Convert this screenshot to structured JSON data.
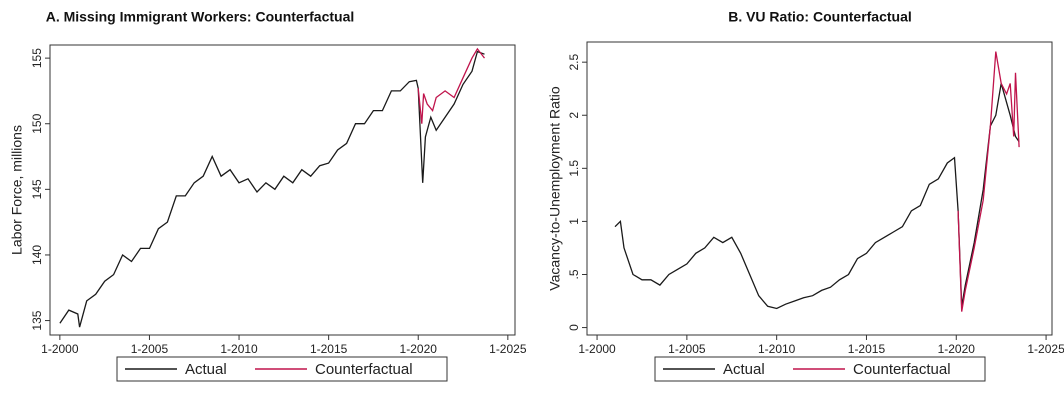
{
  "chart_data": [
    {
      "type": "line",
      "title": "A. Missing Immigrant Workers: Counterfactual",
      "y_label": "Labor Force, millions",
      "xlim": [
        1999.45,
        2025.4
      ],
      "ylim": [
        133.9,
        156
      ],
      "xticks": [
        {
          "value": 2000,
          "label": "1-2000"
        },
        {
          "value": 2005,
          "label": "1-2005"
        },
        {
          "value": 2010,
          "label": "1-2010"
        },
        {
          "value": 2015,
          "label": "1-2015"
        },
        {
          "value": 2020,
          "label": "1-2020"
        },
        {
          "value": 2025,
          "label": "1-2025"
        }
      ],
      "yticks": [
        135,
        140,
        145,
        150,
        155
      ],
      "series": [
        {
          "name": "Actual",
          "color": "#1a1a1a",
          "x": [
            2000,
            2000.5,
            2001,
            2001.1,
            2001.5,
            2002,
            2002.5,
            2003,
            2003.5,
            2004,
            2004.5,
            2005,
            2005.5,
            2006,
            2006.5,
            2007,
            2007.5,
            2008,
            2008.5,
            2009,
            2009.5,
            2010,
            2010.5,
            2011,
            2011.5,
            2012,
            2012.5,
            2013,
            2013.5,
            2014,
            2014.5,
            2015,
            2015.5,
            2016,
            2016.5,
            2017,
            2017.5,
            2018,
            2018.5,
            2019,
            2019.5,
            2019.9,
            2020,
            2020.25,
            2020.4,
            2020.7,
            2021,
            2021.5,
            2022,
            2022.5,
            2023,
            2023.3,
            2023.7
          ],
          "values": [
            134.8,
            135.8,
            135.5,
            134.5,
            136.5,
            137,
            138,
            138.5,
            140,
            139.5,
            140.5,
            140.5,
            142,
            142.5,
            144.5,
            144.5,
            145.5,
            146,
            147.5,
            146,
            146.5,
            145.5,
            145.8,
            144.8,
            145.5,
            145,
            146,
            145.5,
            146.5,
            146,
            146.8,
            147,
            148,
            148.5,
            150,
            150,
            151,
            151,
            152.5,
            152.5,
            153.2,
            153.3,
            152.7,
            145.5,
            149,
            150.5,
            149.5,
            150.5,
            151.5,
            153,
            154,
            155.5,
            155.3
          ]
        },
        {
          "name": "Counterfactual",
          "color": "#c0144c",
          "x": [
            2020,
            2020.2,
            2020.3,
            2020.5,
            2020.8,
            2021,
            2021.5,
            2022,
            2022.5,
            2023,
            2023.3,
            2023.7
          ],
          "values": [
            152.7,
            150,
            152.3,
            151.5,
            151,
            152,
            152.5,
            152,
            153.5,
            155,
            155.7,
            155
          ]
        }
      ]
    },
    {
      "type": "line",
      "title": "B. VU Ratio: Counterfactual",
      "y_label": "Vacancy-to-Unemployment Ratio",
      "xlim": [
        1999.44,
        2025.33
      ],
      "ylim": [
        -0.07,
        2.69
      ],
      "xticks": [
        {
          "value": 2000,
          "label": "1-2000"
        },
        {
          "value": 2005,
          "label": "1-2005"
        },
        {
          "value": 2010,
          "label": "1-2010"
        },
        {
          "value": 2015,
          "label": "1-2015"
        },
        {
          "value": 2020,
          "label": "1-2020"
        },
        {
          "value": 2025,
          "label": "1-2025"
        }
      ],
      "yticks": [
        0,
        {
          "value": 0.5,
          "label": ".5"
        },
        1,
        1.5,
        2,
        2.5
      ],
      "series": [
        {
          "name": "Actual",
          "color": "#1a1a1a",
          "x": [
            2001,
            2001.3,
            2001.5,
            2002,
            2002.5,
            2003,
            2003.5,
            2004,
            2004.5,
            2005,
            2005.5,
            2006,
            2006.5,
            2007,
            2007.5,
            2008,
            2008.5,
            2009,
            2009.5,
            2010,
            2010.5,
            2011,
            2011.5,
            2012,
            2012.5,
            2013,
            2013.5,
            2014,
            2014.5,
            2015,
            2015.5,
            2016,
            2016.5,
            2017,
            2017.5,
            2018,
            2018.5,
            2019,
            2019.5,
            2019.9,
            2020.1,
            2020.3,
            2020.5,
            2021,
            2021.5,
            2021.9,
            2022.2,
            2022.5,
            2023,
            2023.3,
            2023.5
          ],
          "values": [
            0.95,
            1.0,
            0.75,
            0.5,
            0.45,
            0.45,
            0.4,
            0.5,
            0.55,
            0.6,
            0.7,
            0.75,
            0.85,
            0.8,
            0.85,
            0.7,
            0.5,
            0.3,
            0.2,
            0.18,
            0.22,
            0.25,
            0.28,
            0.3,
            0.35,
            0.38,
            0.45,
            0.5,
            0.65,
            0.7,
            0.8,
            0.85,
            0.9,
            0.95,
            1.1,
            1.15,
            1.35,
            1.4,
            1.55,
            1.6,
            1.1,
            0.2,
            0.4,
            0.8,
            1.3,
            1.9,
            2.0,
            2.3,
            2.0,
            1.8,
            1.75
          ]
        },
        {
          "name": "Counterfactual",
          "color": "#c0144c",
          "x": [
            2020.1,
            2020.3,
            2020.5,
            2021,
            2021.5,
            2021.9,
            2022.2,
            2022.5,
            2022.8,
            2023,
            2023.2,
            2023.3,
            2023.5
          ],
          "values": [
            1.1,
            0.15,
            0.35,
            0.75,
            1.2,
            1.9,
            2.6,
            2.3,
            2.2,
            2.3,
            1.8,
            2.4,
            1.7
          ]
        }
      ]
    }
  ]
}
